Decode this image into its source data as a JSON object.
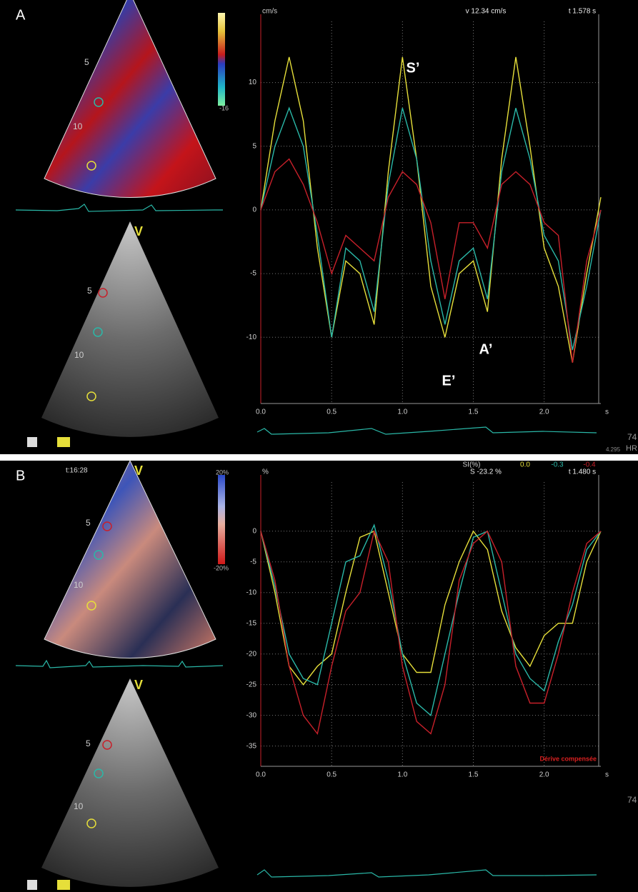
{
  "chart_data": [
    {
      "type": "line",
      "panel_label": "A",
      "y_unit": "cm/s",
      "x_unit": "s",
      "readouts": [
        "v 12.34 cm/s",
        "t 1.578 s"
      ],
      "annotations": [
        "S’",
        "E’",
        "A’"
      ],
      "upper_image_labels": [
        "5",
        "10"
      ],
      "lower_image_labels": [
        "V",
        "5",
        "10"
      ],
      "colorbar_labels": [
        "-16"
      ],
      "heart_rate": "74",
      "hr_label": "HR",
      "footer": "4.295",
      "x": [
        0,
        0.1,
        0.2,
        0.3,
        0.4,
        0.5,
        0.6,
        0.7,
        0.8,
        0.9,
        1.0,
        1.1,
        1.2,
        1.3,
        1.4,
        1.5,
        1.6,
        1.7,
        1.8,
        1.9,
        2.0,
        2.1,
        2.2,
        2.3,
        2.4
      ],
      "series": [
        {
          "color": "#e6df3a",
          "values": [
            0,
            7,
            12,
            7,
            -3,
            -10,
            -4,
            -5,
            -9,
            3,
            12,
            4,
            -6,
            -10,
            -5,
            -4,
            -8,
            4,
            12,
            5,
            -3,
            -6,
            -12,
            -5,
            1
          ]
        },
        {
          "color": "#2ab8a8",
          "values": [
            0,
            5,
            8,
            5,
            -2,
            -10,
            -3,
            -4,
            -8,
            2,
            8,
            4,
            -4,
            -9,
            -4,
            -3,
            -7,
            3,
            8,
            4,
            -2,
            -4,
            -11,
            -6,
            0
          ]
        },
        {
          "color": "#c8202a",
          "values": [
            0,
            3,
            4,
            2,
            -1,
            -5,
            -2,
            -3,
            -4,
            1,
            3,
            2,
            -1,
            -7,
            -1,
            -1,
            -3,
            2,
            3,
            2,
            -1,
            -2,
            -12,
            -4,
            0
          ]
        }
      ],
      "xlim": [
        0,
        2.4
      ],
      "ylim": [
        -15.2,
        14.8
      ],
      "xticks": [
        {
          "value": 0,
          "label": "0.0"
        },
        0.5,
        {
          "value": 1,
          "label": "1.0"
        },
        1.5,
        {
          "value": 2,
          "label": "2.0"
        }
      ],
      "yticks": [
        10,
        5,
        0,
        -5,
        -10
      ],
      "grid": true
    },
    {
      "type": "line",
      "panel_label": "B",
      "y_unit": "%",
      "x_unit": "s",
      "readouts": [
        "S -23.2 %",
        "t 1.480 s"
      ],
      "legend_title": "SI(%)",
      "clock": "t:16:28",
      "upper_image_labels": [
        "V",
        "5",
        "10"
      ],
      "lower_image_labels": [
        "V",
        "5",
        "10"
      ],
      "colorbar_labels": [
        "20%",
        "-20%"
      ],
      "heart_rate": "74",
      "drift_label": "Dérive compensée",
      "x": [
        0,
        0.1,
        0.2,
        0.3,
        0.4,
        0.5,
        0.6,
        0.7,
        0.8,
        0.9,
        1.0,
        1.1,
        1.2,
        1.3,
        1.4,
        1.5,
        1.6,
        1.7,
        1.8,
        1.9,
        2.0,
        2.1,
        2.2,
        2.3,
        2.4
      ],
      "series": [
        {
          "color": "#e6df3a",
          "readout": "0.0",
          "values": [
            0,
            -10,
            -22,
            -25,
            -22,
            -20,
            -10,
            -1,
            0,
            -10,
            -20,
            -23,
            -23,
            -12,
            -5,
            0,
            -3,
            -13,
            -19,
            -22,
            -17,
            -15,
            -15,
            -5,
            0
          ]
        },
        {
          "color": "#2ab8a8",
          "readout": "-0.3",
          "values": [
            0,
            -9,
            -20,
            -24,
            -25,
            -15,
            -5,
            -4,
            1,
            -8,
            -20,
            -28,
            -30,
            -20,
            -10,
            -1,
            0,
            -10,
            -20,
            -24,
            -26,
            -18,
            -12,
            -3,
            0
          ]
        },
        {
          "color": "#c8202a",
          "readout": "-0.4",
          "values": [
            0,
            -8,
            -22,
            -30,
            -33,
            -22,
            -13,
            -10,
            0,
            -5,
            -22,
            -31,
            -33,
            -25,
            -8,
            -2,
            0,
            -5,
            -22,
            -28,
            -28,
            -20,
            -10,
            -2,
            0
          ]
        }
      ],
      "xlim": [
        0,
        2.4
      ],
      "ylim": [
        -38.3,
        8
      ],
      "xticks": [
        {
          "value": 0,
          "label": "0.0"
        },
        0.5,
        {
          "value": 1,
          "label": "1.0"
        },
        1.5,
        {
          "value": 2,
          "label": "2.0"
        }
      ],
      "yticks": [
        0,
        -5,
        -10,
        -15,
        -20,
        -25,
        -30,
        -35
      ],
      "grid": true
    }
  ]
}
